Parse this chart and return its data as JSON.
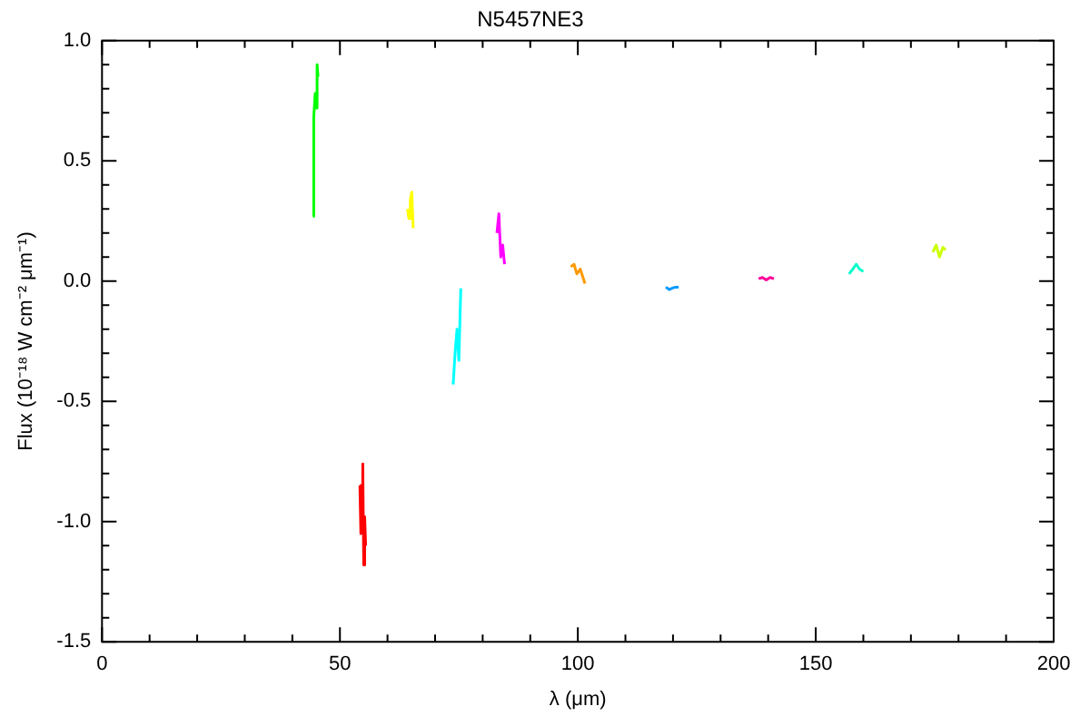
{
  "chart_data": {
    "type": "line",
    "title": "N5457NE3",
    "xlabel": "λ (μm)",
    "ylabel": "Flux (10⁻¹⁸ W cm⁻² μm⁻¹)",
    "marker": "none",
    "xlim": [
      0,
      200
    ],
    "ylim": [
      -1.5,
      1.0
    ],
    "xticks": [
      0,
      {
        "value": 10,
        "label": null
      },
      {
        "value": 20,
        "label": null
      },
      {
        "value": 30,
        "label": null
      },
      {
        "value": 40,
        "label": null
      },
      50,
      {
        "value": 60,
        "label": null
      },
      {
        "value": 70,
        "label": null
      },
      {
        "value": 80,
        "label": null
      },
      {
        "value": 90,
        "label": null
      },
      100,
      {
        "value": 110,
        "label": null
      },
      {
        "value": 120,
        "label": null
      },
      {
        "value": 130,
        "label": null
      },
      {
        "value": 140,
        "label": null
      },
      150,
      {
        "value": 160,
        "label": null
      },
      {
        "value": 170,
        "label": null
      },
      {
        "value": 180,
        "label": null
      },
      {
        "value": 190,
        "label": null
      },
      200
    ],
    "yticks": [
      {
        "value": -1.5,
        "label": "-1.5"
      },
      {
        "value": -1.4,
        "label": null
      },
      {
        "value": -1.3,
        "label": null
      },
      {
        "value": -1.2,
        "label": null
      },
      {
        "value": -1.1,
        "label": null
      },
      {
        "value": -1.0,
        "label": "-1.0"
      },
      {
        "value": -0.9,
        "label": null
      },
      {
        "value": -0.8,
        "label": null
      },
      {
        "value": -0.7,
        "label": null
      },
      {
        "value": -0.6,
        "label": null
      },
      {
        "value": -0.5,
        "label": "-0.5"
      },
      {
        "value": -0.4,
        "label": null
      },
      {
        "value": -0.3,
        "label": null
      },
      {
        "value": -0.2,
        "label": null
      },
      {
        "value": -0.1,
        "label": null
      },
      {
        "value": 0.0,
        "label": "0.0"
      },
      {
        "value": 0.1,
        "label": null
      },
      {
        "value": 0.2,
        "label": null
      },
      {
        "value": 0.3,
        "label": null
      },
      {
        "value": 0.4,
        "label": null
      },
      {
        "value": 0.5,
        "label": "0.5"
      },
      {
        "value": 0.6,
        "label": null
      },
      {
        "value": 0.7,
        "label": null
      },
      {
        "value": 0.8,
        "label": null
      },
      {
        "value": 0.9,
        "label": null
      },
      {
        "value": 1.0,
        "label": "1.0"
      }
    ],
    "series": [
      {
        "color": "#00ff00",
        "x": [
          44.3,
          44.4,
          44.5,
          44.6,
          44.8,
          45.0,
          45.2,
          45.4
        ],
        "values": [
          0.27,
          0.55,
          0.62,
          0.68,
          0.78,
          0.72,
          0.9,
          0.85
        ]
      },
      {
        "color": "#ff0000",
        "x": [
          54.2,
          54.4,
          54.6,
          54.8,
          55.0,
          55.2,
          55.4
        ],
        "values": [
          -0.85,
          -1.05,
          -0.93,
          -0.76,
          -1.18,
          -0.98,
          -1.1
        ]
      },
      {
        "color": "#ffff00",
        "x": [
          64.2,
          64.5,
          64.8,
          65.1,
          65.4
        ],
        "values": [
          0.3,
          0.26,
          0.34,
          0.37,
          0.22
        ]
      },
      {
        "color": "#00ffff",
        "x": [
          73.8,
          74.2,
          74.6,
          75.0,
          75.4
        ],
        "values": [
          -0.43,
          -0.3,
          -0.2,
          -0.33,
          -0.03
        ]
      },
      {
        "color": "#ff00ff",
        "x": [
          83.0,
          83.4,
          83.8,
          84.2,
          84.6
        ],
        "values": [
          0.2,
          0.28,
          0.1,
          0.15,
          0.07
        ]
      },
      {
        "color": "#ff9900",
        "x": [
          98.5,
          99.2,
          99.8,
          100.5,
          101.0,
          101.5
        ],
        "values": [
          0.06,
          0.07,
          0.03,
          0.05,
          0.02,
          -0.01
        ]
      },
      {
        "color": "#0099ff",
        "x": [
          118.5,
          119.2,
          119.8,
          120.5,
          121.2
        ],
        "values": [
          -0.025,
          -0.035,
          -0.03,
          -0.025,
          -0.025
        ]
      },
      {
        "color": "#ff0099",
        "x": [
          138.0,
          138.8,
          139.6,
          140.4,
          141.2
        ],
        "values": [
          0.01,
          0.015,
          0.005,
          0.015,
          0.01
        ]
      },
      {
        "color": "#00ffcc",
        "x": [
          157.0,
          157.8,
          158.5,
          159.2,
          160.0
        ],
        "values": [
          0.03,
          0.05,
          0.07,
          0.05,
          0.04
        ]
      },
      {
        "color": "#ccff00",
        "x": [
          174.6,
          175.3,
          176.0,
          176.7,
          177.3
        ],
        "values": [
          0.12,
          0.15,
          0.1,
          0.14,
          0.13
        ]
      }
    ]
  }
}
